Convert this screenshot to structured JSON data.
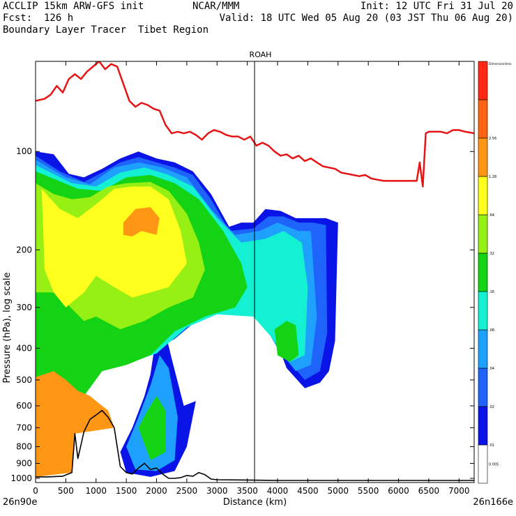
{
  "header": {
    "left_line1": "ACCLIP 15km ARW-GFS init",
    "left_line2": "Fcst:  126 h",
    "left_line3": "Boundary Layer Tracer  Tibet Region",
    "center_line1": "NCAR/MMM",
    "right_line1": "Init: 12 UTC Fri 31 Jul 20",
    "right_line2": "Valid: 18 UTC Wed 05 Aug 20 (03 JST Thu 06 Aug 20)"
  },
  "chart_data": {
    "type": "heatmap",
    "title": "ROAH",
    "xlabel": "Distance (km)",
    "ylabel": "Pressure (hPa), log scale",
    "x_ticks": [
      0,
      500,
      1000,
      1500,
      2000,
      2500,
      3000,
      3500,
      4000,
      4500,
      5000,
      5500,
      6000,
      6500,
      7000
    ],
    "y_ticks": [
      100,
      200,
      300,
      400,
      500,
      600,
      700,
      800,
      900,
      1000
    ],
    "xlim": [
      0,
      7250
    ],
    "ylim": [
      1030,
      53
    ],
    "y_scale": "log",
    "start_label": "26n90e",
    "end_label": "26n166e",
    "vertical_marker_x": 3620,
    "colorbar": {
      "labels": [
        "0.005",
        ".01",
        ".02",
        ".04",
        ".08",
        ".16",
        ".32",
        ".64",
        "1.28",
        "2.56",
        "Dimensionless"
      ],
      "colors": [
        "#ffffff",
        "#0a14e6",
        "#1e64fa",
        "#1ea0ff",
        "#14f0d2",
        "#14d214",
        "#96f014",
        "#ffff1e",
        "#ff9614",
        "#ff6414",
        "#ff2814"
      ]
    },
    "tropopause_line": {
      "color": "#e61414",
      "x": [
        0,
        150,
        250,
        350,
        450,
        550,
        650,
        750,
        850,
        950,
        1050,
        1150,
        1250,
        1350,
        1450,
        1550,
        1650,
        1750,
        1850,
        1950,
        2050,
        2150,
        2250,
        2350,
        2450,
        2550,
        2650,
        2750,
        2850,
        2950,
        3050,
        3150,
        3250,
        3350,
        3450,
        3550,
        3650,
        3750,
        3850,
        3950,
        4050,
        4150,
        4250,
        4350,
        4450,
        4550,
        4650,
        4750,
        4850,
        4950,
        5050,
        5150,
        5250,
        5350,
        5450,
        5550,
        5650,
        5750,
        5850,
        5950,
        6050,
        6150,
        6250,
        6300,
        6350,
        6400,
        6450,
        6500,
        6600,
        6700,
        6800,
        6900,
        7000,
        7100,
        7250
      ],
      "y": [
        70,
        69,
        67,
        63,
        66,
        60,
        58,
        60,
        57,
        55,
        53,
        56,
        54,
        55,
        62,
        70,
        73,
        71,
        72,
        74,
        75,
        83,
        88,
        87,
        88,
        87,
        89,
        92,
        88,
        86,
        87,
        89,
        90,
        90,
        92,
        90,
        96,
        94,
        96,
        100,
        103,
        102,
        105,
        103,
        107,
        105,
        108,
        111,
        112,
        113,
        116,
        117,
        118,
        119,
        118,
        121,
        122,
        123,
        123,
        123,
        123,
        123,
        123,
        123,
        108,
        128,
        88,
        87,
        87,
        87,
        88,
        86,
        86,
        87,
        88
      ]
    },
    "terrain_line": {
      "color": "#000000",
      "x": [
        0,
        200,
        450,
        600,
        650,
        700,
        800,
        900,
        1000,
        1100,
        1200,
        1300,
        1400,
        1500,
        1600,
        1700,
        1800,
        1900,
        2000,
        2100,
        2200,
        2300,
        2400,
        2500,
        2600,
        2700,
        2800,
        2900,
        3000,
        3500,
        4000,
        5000,
        6000,
        7000,
        7250
      ],
      "y": [
        990,
        990,
        985,
        960,
        730,
        870,
        720,
        660,
        640,
        620,
        650,
        700,
        920,
        960,
        970,
        930,
        900,
        940,
        930,
        970,
        1000,
        1000,
        995,
        980,
        985,
        960,
        975,
        1005,
        1010,
        1012,
        1015,
        1015,
        1015,
        1015,
        1015
      ]
    },
    "tracer_levels": [
      {
        "label": ".01",
        "color": "#0a14e6",
        "outline": [
          [
            0,
            100
          ],
          [
            300,
            102
          ],
          [
            550,
            117
          ],
          [
            800,
            120
          ],
          [
            1100,
            113
          ],
          [
            1400,
            105
          ],
          [
            1700,
            100
          ],
          [
            2000,
            105
          ],
          [
            2300,
            108
          ],
          [
            2600,
            115
          ],
          [
            2900,
            135
          ],
          [
            3200,
            170
          ],
          [
            3400,
            165
          ],
          [
            3600,
            165
          ],
          [
            3800,
            150
          ],
          [
            4050,
            152
          ],
          [
            4300,
            160
          ],
          [
            4600,
            160
          ],
          [
            4800,
            160
          ],
          [
            5000,
            165
          ],
          [
            4950,
            380
          ],
          [
            4850,
            470
          ],
          [
            4700,
            510
          ],
          [
            4450,
            530
          ],
          [
            4150,
            460
          ],
          [
            3800,
            310
          ],
          [
            3200,
            300
          ],
          [
            2700,
            320
          ],
          [
            2300,
            370
          ],
          [
            2000,
            390
          ],
          [
            1800,
            420
          ],
          [
            1500,
            440
          ],
          [
            1200,
            430
          ],
          [
            1050,
            480
          ],
          [
            0,
            480
          ]
        ]
      },
      {
        "label": ".01",
        "color": "#0a14e6",
        "outline": [
          [
            1400,
            830
          ],
          [
            1600,
            700
          ],
          [
            1800,
            560
          ],
          [
            1900,
            480
          ],
          [
            2000,
            360
          ],
          [
            2150,
            360
          ],
          [
            2250,
            430
          ],
          [
            2450,
            600
          ],
          [
            2650,
            580
          ],
          [
            2500,
            800
          ],
          [
            2300,
            950
          ],
          [
            1900,
            990
          ],
          [
            1500,
            960
          ]
        ]
      },
      {
        "label": ".02",
        "color": "#1e64fa",
        "outline": [
          [
            0,
            103
          ],
          [
            400,
            115
          ],
          [
            800,
            124
          ],
          [
            1100,
            116
          ],
          [
            1400,
            108
          ],
          [
            1700,
            104
          ],
          [
            2000,
            108
          ],
          [
            2300,
            112
          ],
          [
            2600,
            118
          ],
          [
            2900,
            140
          ],
          [
            3200,
            175
          ],
          [
            3600,
            172
          ],
          [
            3850,
            158
          ],
          [
            4100,
            158
          ],
          [
            4350,
            165
          ],
          [
            4600,
            165
          ],
          [
            4800,
            168
          ],
          [
            4820,
            360
          ],
          [
            4700,
            470
          ],
          [
            4450,
            500
          ],
          [
            4150,
            430
          ],
          [
            3800,
            310
          ],
          [
            3200,
            305
          ],
          [
            2700,
            325
          ],
          [
            2300,
            375
          ],
          [
            2000,
            400
          ],
          [
            1700,
            430
          ],
          [
            1400,
            440
          ],
          [
            1150,
            440
          ],
          [
            1000,
            490
          ],
          [
            0,
            480
          ]
        ]
      },
      {
        "label": ".04",
        "color": "#1ea0ff",
        "outline": [
          [
            0,
            106
          ],
          [
            500,
            120
          ],
          [
            900,
            126
          ],
          [
            1300,
            112
          ],
          [
            1700,
            108
          ],
          [
            2100,
            112
          ],
          [
            2500,
            120
          ],
          [
            2900,
            150
          ],
          [
            3300,
            180
          ],
          [
            3700,
            175
          ],
          [
            4000,
            165
          ],
          [
            4350,
            175
          ],
          [
            4550,
            175
          ],
          [
            4650,
            320
          ],
          [
            4550,
            450
          ],
          [
            4300,
            470
          ],
          [
            4000,
            400
          ],
          [
            3700,
            320
          ],
          [
            3000,
            310
          ],
          [
            2500,
            340
          ],
          [
            2000,
            410
          ],
          [
            1500,
            440
          ],
          [
            1100,
            450
          ],
          [
            900,
            520
          ],
          [
            0,
            500
          ]
        ]
      },
      {
        "label": ".04",
        "color": "#1ea0ff",
        "outline": [
          [
            1500,
            800
          ],
          [
            1700,
            650
          ],
          [
            1900,
            520
          ],
          [
            2050,
            420
          ],
          [
            2200,
            460
          ],
          [
            2350,
            650
          ],
          [
            2300,
            880
          ],
          [
            2000,
            950
          ],
          [
            1650,
            940
          ]
        ]
      },
      {
        "label": ".08",
        "color": "#14f0d2",
        "outline": [
          [
            0,
            110
          ],
          [
            600,
            125
          ],
          [
            1000,
            128
          ],
          [
            1400,
            116
          ],
          [
            1800,
            112
          ],
          [
            2200,
            118
          ],
          [
            2600,
            128
          ],
          [
            3000,
            160
          ],
          [
            3400,
            190
          ],
          [
            3800,
            185
          ],
          [
            4100,
            175
          ],
          [
            4400,
            190
          ],
          [
            4500,
            260
          ],
          [
            4450,
            420
          ],
          [
            4200,
            440
          ],
          [
            3900,
            370
          ],
          [
            3600,
            320
          ],
          [
            3000,
            315
          ],
          [
            2500,
            345
          ],
          [
            2000,
            415
          ],
          [
            1500,
            445
          ],
          [
            1100,
            460
          ],
          [
            900,
            530
          ],
          [
            0,
            510
          ]
        ]
      },
      {
        "label": ".16",
        "color": "#14d214",
        "outline": [
          [
            0,
            115
          ],
          [
            700,
            130
          ],
          [
            1100,
            132
          ],
          [
            1500,
            120
          ],
          [
            1900,
            118
          ],
          [
            2300,
            125
          ],
          [
            2700,
            140
          ],
          [
            3100,
            175
          ],
          [
            3400,
            220
          ],
          [
            3500,
            260
          ],
          [
            3300,
            300
          ],
          [
            2800,
            320
          ],
          [
            2300,
            355
          ],
          [
            1900,
            420
          ],
          [
            1500,
            450
          ],
          [
            1100,
            470
          ],
          [
            800,
            560
          ],
          [
            0,
            530
          ]
        ]
      },
      {
        "label": ".16",
        "color": "#14d214",
        "outline": [
          [
            3950,
            350
          ],
          [
            4150,
            330
          ],
          [
            4300,
            340
          ],
          [
            4350,
            420
          ],
          [
            4200,
            440
          ],
          [
            4000,
            420
          ]
        ]
      },
      {
        "label": ".16",
        "color": "#14d214",
        "outline": [
          [
            1700,
            700
          ],
          [
            1850,
            620
          ],
          [
            2000,
            560
          ],
          [
            2150,
            620
          ],
          [
            2150,
            830
          ],
          [
            1900,
            880
          ]
        ]
      },
      {
        "label": ".32",
        "color": "#96f014",
        "outline": [
          [
            0,
            125
          ],
          [
            300,
            135
          ],
          [
            600,
            140
          ],
          [
            900,
            138
          ],
          [
            1200,
            128
          ],
          [
            1500,
            125
          ],
          [
            1900,
            124
          ],
          [
            2200,
            132
          ],
          [
            2500,
            155
          ],
          [
            2700,
            190
          ],
          [
            2800,
            230
          ],
          [
            2600,
            280
          ],
          [
            2200,
            300
          ],
          [
            1800,
            330
          ],
          [
            1400,
            350
          ],
          [
            1000,
            320
          ],
          [
            800,
            330
          ],
          [
            500,
            290
          ],
          [
            300,
            270
          ],
          [
            0,
            270
          ]
        ]
      },
      {
        "label": ".64",
        "color": "#ffff1e",
        "outline": [
          [
            100,
            130
          ],
          [
            400,
            150
          ],
          [
            700,
            160
          ],
          [
            1000,
            145
          ],
          [
            1300,
            130
          ],
          [
            1600,
            128
          ],
          [
            1900,
            128
          ],
          [
            2200,
            140
          ],
          [
            2400,
            175
          ],
          [
            2500,
            220
          ],
          [
            2200,
            260
          ],
          [
            1900,
            270
          ],
          [
            1600,
            280
          ],
          [
            1300,
            260
          ],
          [
            1000,
            240
          ],
          [
            800,
            270
          ],
          [
            500,
            300
          ],
          [
            300,
            270
          ],
          [
            150,
            230
          ]
        ]
      },
      {
        "label": "1.28",
        "color": "#ff9614",
        "outline": [
          [
            1450,
            165
          ],
          [
            1650,
            150
          ],
          [
            1900,
            148
          ],
          [
            2050,
            160
          ],
          [
            2000,
            180
          ],
          [
            1750,
            175
          ],
          [
            1600,
            182
          ],
          [
            1450,
            180
          ]
        ]
      },
      {
        "label": "1.28",
        "color": "#ff9614",
        "outline": [
          [
            0,
            490
          ],
          [
            300,
            470
          ],
          [
            500,
            500
          ],
          [
            700,
            540
          ],
          [
            900,
            560
          ],
          [
            1050,
            590
          ],
          [
            1200,
            620
          ],
          [
            1300,
            700
          ],
          [
            650,
            730
          ],
          [
            600,
            960
          ],
          [
            0,
            990
          ]
        ]
      }
    ]
  }
}
